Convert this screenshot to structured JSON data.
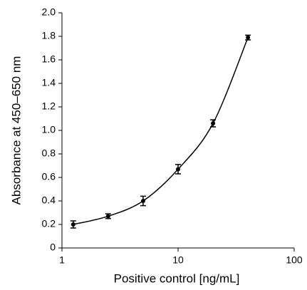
{
  "chart_data": {
    "type": "scatter",
    "x_label": "Positive control [ng/mL]",
    "y_label": "Absorbance at 450–650 nm",
    "x": [
      1.25,
      2.5,
      5,
      10,
      20,
      40
    ],
    "values": [
      0.2,
      0.27,
      0.4,
      0.67,
      1.06,
      1.79
    ],
    "errors": [
      0.03,
      0.02,
      0.04,
      0.04,
      0.03,
      0.02
    ],
    "color": "#000000",
    "fit_line": true,
    "x_log": true,
    "xlim": [
      1,
      100
    ],
    "xticks": [
      1,
      10,
      100
    ],
    "ylim": [
      0,
      2
    ],
    "yticks": [
      0,
      0.2,
      0.4,
      0.6,
      0.8,
      {
        "value": 1,
        "label": "1.0"
      },
      1.2,
      1.4,
      1.6,
      1.8,
      {
        "value": 2,
        "label": "2.0"
      }
    ]
  }
}
